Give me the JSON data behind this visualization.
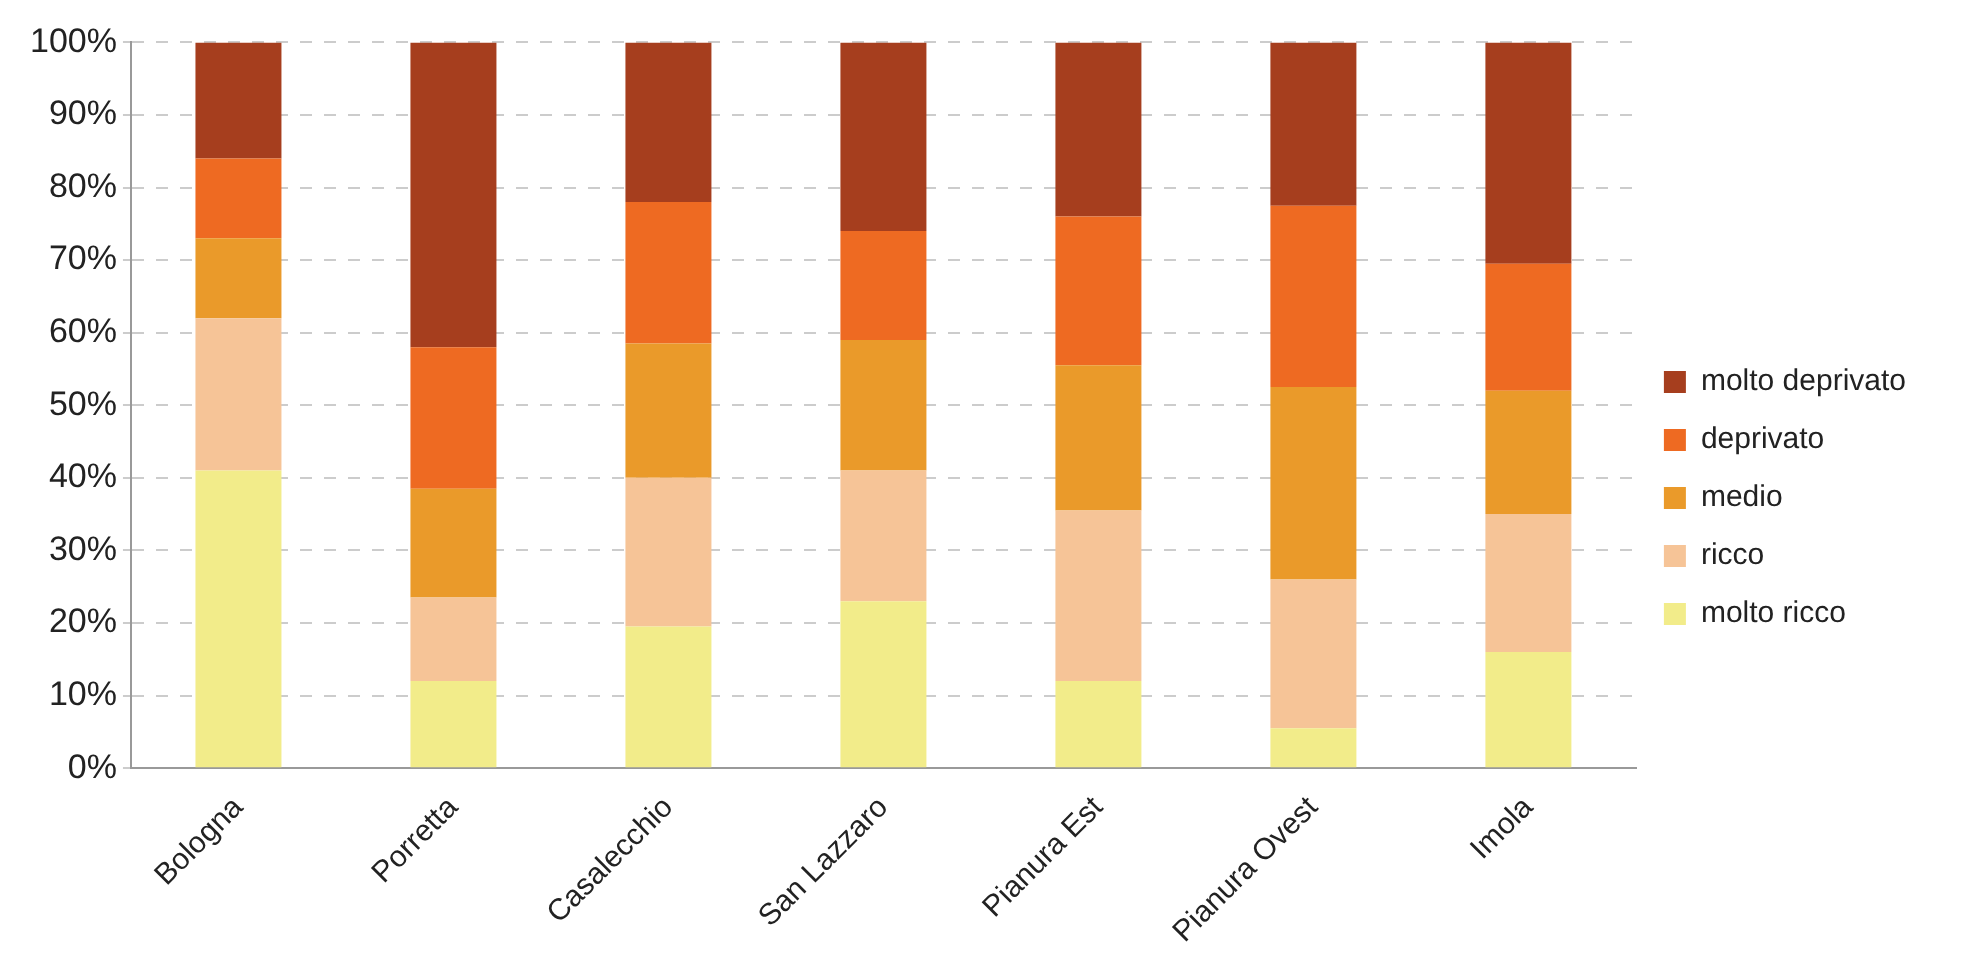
{
  "chart_data": {
    "type": "bar",
    "stacked": true,
    "categories": [
      "Bologna",
      "Porretta",
      "Casalecchio",
      "San Lazzaro",
      "Pianura Est",
      "Pianura Ovest",
      "Imola"
    ],
    "series": [
      {
        "name": "molto ricco",
        "color": "#f2ec8a",
        "values": [
          41,
          12,
          19.5,
          23,
          12,
          5.5,
          16
        ]
      },
      {
        "name": "ricco",
        "color": "#f6c497",
        "values": [
          21,
          11.5,
          20.5,
          18,
          23.5,
          20.5,
          19
        ]
      },
      {
        "name": "medio",
        "color": "#ea9a2a",
        "values": [
          11,
          15,
          18.5,
          18,
          20,
          26.5,
          17
        ]
      },
      {
        "name": "deprivato",
        "color": "#ee6a22",
        "values": [
          11,
          19.5,
          19.5,
          15,
          20.5,
          25,
          17.5
        ]
      },
      {
        "name": "molto deprivato",
        "color": "#a63e1e",
        "values": [
          16,
          42,
          22,
          26,
          24,
          22.5,
          30.5
        ]
      }
    ],
    "ylim": [
      0,
      100
    ],
    "yticks": [
      {
        "value": 0,
        "label": "0%"
      },
      {
        "value": 10,
        "label": "10%"
      },
      {
        "value": 20,
        "label": "20%"
      },
      {
        "value": 30,
        "label": "30%"
      },
      {
        "value": 40,
        "label": "40%"
      },
      {
        "value": 50,
        "label": "50%"
      },
      {
        "value": 60,
        "label": "60%"
      },
      {
        "value": 70,
        "label": "70%"
      },
      {
        "value": 80,
        "label": "80%"
      },
      {
        "value": 90,
        "label": "90%"
      },
      {
        "value": 100,
        "label": "100%"
      }
    ],
    "grid": "y",
    "legend": "right"
  }
}
